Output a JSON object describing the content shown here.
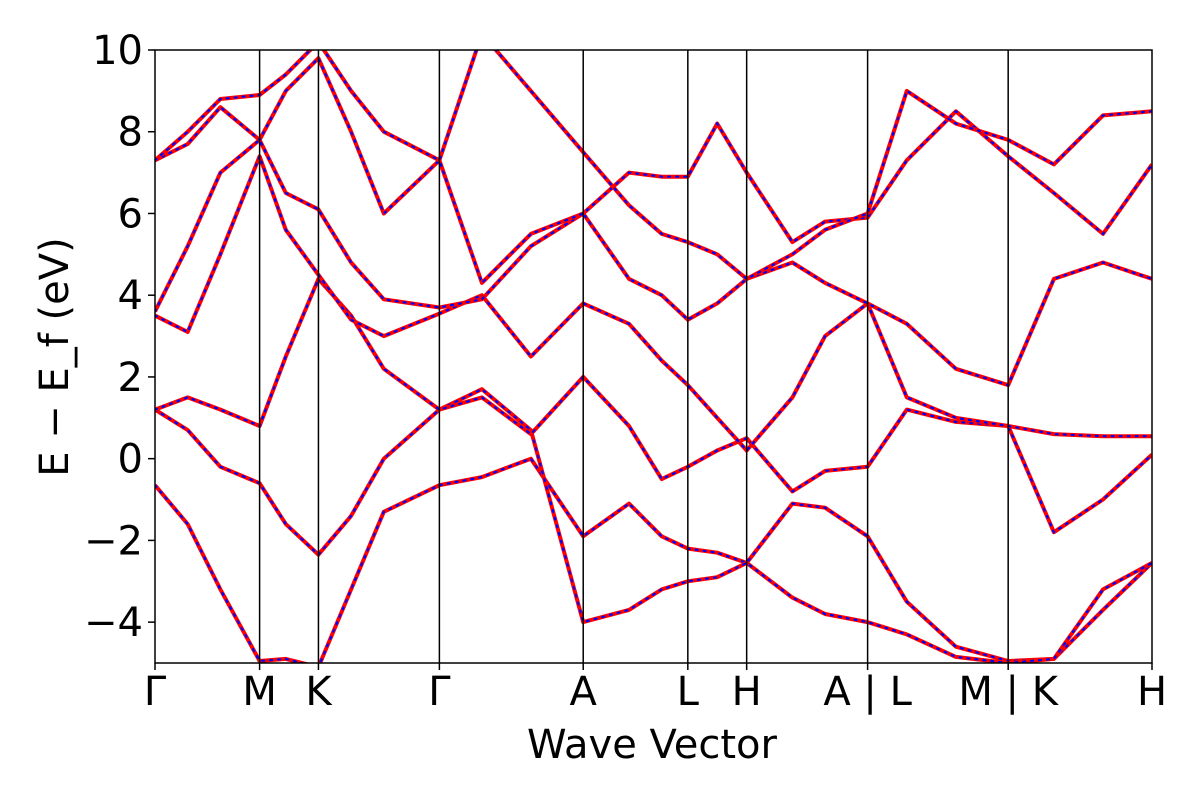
{
  "chart_data": {
    "type": "line",
    "title": "",
    "xlabel": "Wave Vector",
    "ylabel": "E − E_f (eV)",
    "ylim": [
      -5,
      10
    ],
    "yticks": [
      -4,
      -2,
      0,
      2,
      4,
      6,
      8,
      10
    ],
    "ytick_labels": [
      "−4",
      "−2",
      "0",
      "2",
      "4",
      "6",
      "8",
      "10"
    ],
    "xlim": [
      0,
      3.05
    ],
    "kpoints": [
      {
        "label": "Γ",
        "x": 0.0
      },
      {
        "label": "M",
        "x": 0.32
      },
      {
        "label": "K",
        "x": 0.5
      },
      {
        "label": "Γ",
        "x": 0.87
      },
      {
        "label": "A",
        "x": 1.31
      },
      {
        "label": "L",
        "x": 1.63
      },
      {
        "label": "H",
        "x": 1.81
      },
      {
        "label": "A | L",
        "x": 2.18
      },
      {
        "label": "M | K",
        "x": 2.61
      },
      {
        "label": "H",
        "x": 3.05
      }
    ],
    "grid": false,
    "legend": "none",
    "series_styles": [
      {
        "color": "#ff0000",
        "dash": "solid"
      },
      {
        "color": "#0000ff",
        "dash": "dotted"
      }
    ],
    "bands": [
      {
        "x": [
          0,
          0.1,
          0.2,
          0.32,
          0.4,
          0.5,
          0.6,
          0.7,
          0.87,
          1.0,
          1.15,
          1.31,
          1.45,
          1.55,
          1.63,
          1.72,
          1.81,
          1.95,
          2.05,
          2.18,
          2.3,
          2.45,
          2.61,
          2.75,
          2.9,
          3.05
        ],
        "y": [
          -0.65,
          -1.6,
          -3.2,
          -4.95,
          -4.9,
          -5.1,
          -3.2,
          -1.3,
          -0.65,
          -0.45,
          0.0,
          -1.9,
          -1.1,
          -1.9,
          -2.2,
          -2.3,
          -2.55,
          -1.1,
          -1.2,
          -1.9,
          -3.5,
          -4.6,
          -4.95,
          -4.9,
          -3.7,
          -2.55
        ]
      },
      {
        "x": [
          0,
          0.1,
          0.2,
          0.32,
          0.4,
          0.5,
          0.6,
          0.7,
          0.87,
          1.0,
          1.15,
          1.31,
          1.45,
          1.55,
          1.63,
          1.72,
          1.81,
          1.95,
          2.05,
          2.18,
          2.3,
          2.45,
          2.61,
          2.75,
          2.9,
          3.05
        ],
        "y": [
          1.2,
          0.7,
          -0.2,
          -0.6,
          -1.6,
          -2.35,
          -1.4,
          0.0,
          1.2,
          1.7,
          0.7,
          -4.0,
          -3.7,
          -3.2,
          -3.0,
          -2.9,
          -2.55,
          -3.4,
          -3.8,
          -4.0,
          -4.3,
          -4.85,
          -5.0,
          -4.9,
          -3.2,
          -2.55
        ]
      },
      {
        "x": [
          0,
          0.1,
          0.2,
          0.32,
          0.4,
          0.5,
          0.6,
          0.7,
          0.87,
          1.0,
          1.15,
          1.31,
          1.45,
          1.55,
          1.63,
          1.72,
          1.81,
          1.95,
          2.05,
          2.18,
          2.3,
          2.45,
          2.61,
          2.75,
          2.9,
          3.05
        ],
        "y": [
          1.2,
          1.5,
          1.2,
          0.8,
          2.5,
          4.4,
          3.5,
          2.2,
          1.2,
          1.5,
          0.6,
          2.0,
          0.8,
          -0.5,
          -0.2,
          0.2,
          0.5,
          -0.8,
          -0.3,
          -0.2,
          1.2,
          0.9,
          0.8,
          -1.8,
          -1.0,
          0.1
        ]
      },
      {
        "x": [
          0,
          0.1,
          0.2,
          0.32,
          0.4,
          0.5,
          0.6,
          0.7,
          0.87,
          1.0,
          1.15,
          1.31,
          1.45,
          1.55,
          1.63,
          1.72,
          1.81,
          1.95,
          2.05,
          2.18,
          2.3,
          2.45,
          2.61,
          2.75,
          2.9,
          3.05
        ],
        "y": [
          3.5,
          3.1,
          5.0,
          7.4,
          5.6,
          4.5,
          3.4,
          3.0,
          3.55,
          4.0,
          2.5,
          3.8,
          3.3,
          2.4,
          1.8,
          1.0,
          0.2,
          1.5,
          3.0,
          3.8,
          1.5,
          1.0,
          0.8,
          0.6,
          0.55,
          0.55
        ]
      },
      {
        "x": [
          0,
          0.1,
          0.2,
          0.32,
          0.4,
          0.5,
          0.6,
          0.7,
          0.87,
          1.0,
          1.15,
          1.31,
          1.45,
          1.55,
          1.63,
          1.72,
          1.81,
          1.95,
          2.05,
          2.18,
          2.3,
          2.45,
          2.61,
          2.75,
          2.9,
          3.05
        ],
        "y": [
          3.6,
          5.2,
          7.0,
          7.8,
          6.5,
          6.1,
          4.8,
          3.9,
          3.7,
          3.9,
          5.2,
          6.0,
          4.4,
          4.0,
          3.4,
          3.8,
          4.4,
          4.8,
          4.3,
          3.8,
          3.3,
          2.2,
          1.8,
          4.4,
          4.8,
          4.4
        ]
      },
      {
        "x": [
          0,
          0.1,
          0.2,
          0.32,
          0.4,
          0.5,
          0.6,
          0.7,
          0.87,
          1.0,
          1.15,
          1.31,
          1.45,
          1.55,
          1.63,
          1.72,
          1.81,
          1.95,
          2.05,
          2.18,
          2.3,
          2.45,
          2.61,
          2.75,
          2.9,
          3.05
        ],
        "y": [
          7.3,
          7.7,
          8.6,
          7.8,
          9.0,
          9.8,
          8.0,
          6.0,
          7.3,
          4.3,
          5.5,
          6.0,
          7.0,
          6.9,
          6.9,
          8.2,
          7.0,
          5.3,
          5.8,
          5.9,
          7.3,
          8.5,
          7.4,
          6.5,
          5.5,
          7.2
        ]
      },
      {
        "x": [
          0,
          0.1,
          0.2,
          0.32,
          0.4,
          0.5,
          0.6,
          0.7,
          0.87,
          1.0,
          1.15,
          1.31,
          1.45,
          1.55,
          1.63,
          1.72,
          1.81,
          1.95,
          2.05,
          2.18,
          2.3,
          2.45,
          2.61,
          2.75,
          2.9,
          3.05
        ],
        "y": [
          7.3,
          8.0,
          8.8,
          8.9,
          9.4,
          10.2,
          9.0,
          8.0,
          7.3,
          10.4,
          9.0,
          7.5,
          6.2,
          5.5,
          5.3,
          5.0,
          4.4,
          5.0,
          5.6,
          6.0,
          9.0,
          8.2,
          7.8,
          7.2,
          8.4,
          8.5
        ]
      }
    ]
  }
}
